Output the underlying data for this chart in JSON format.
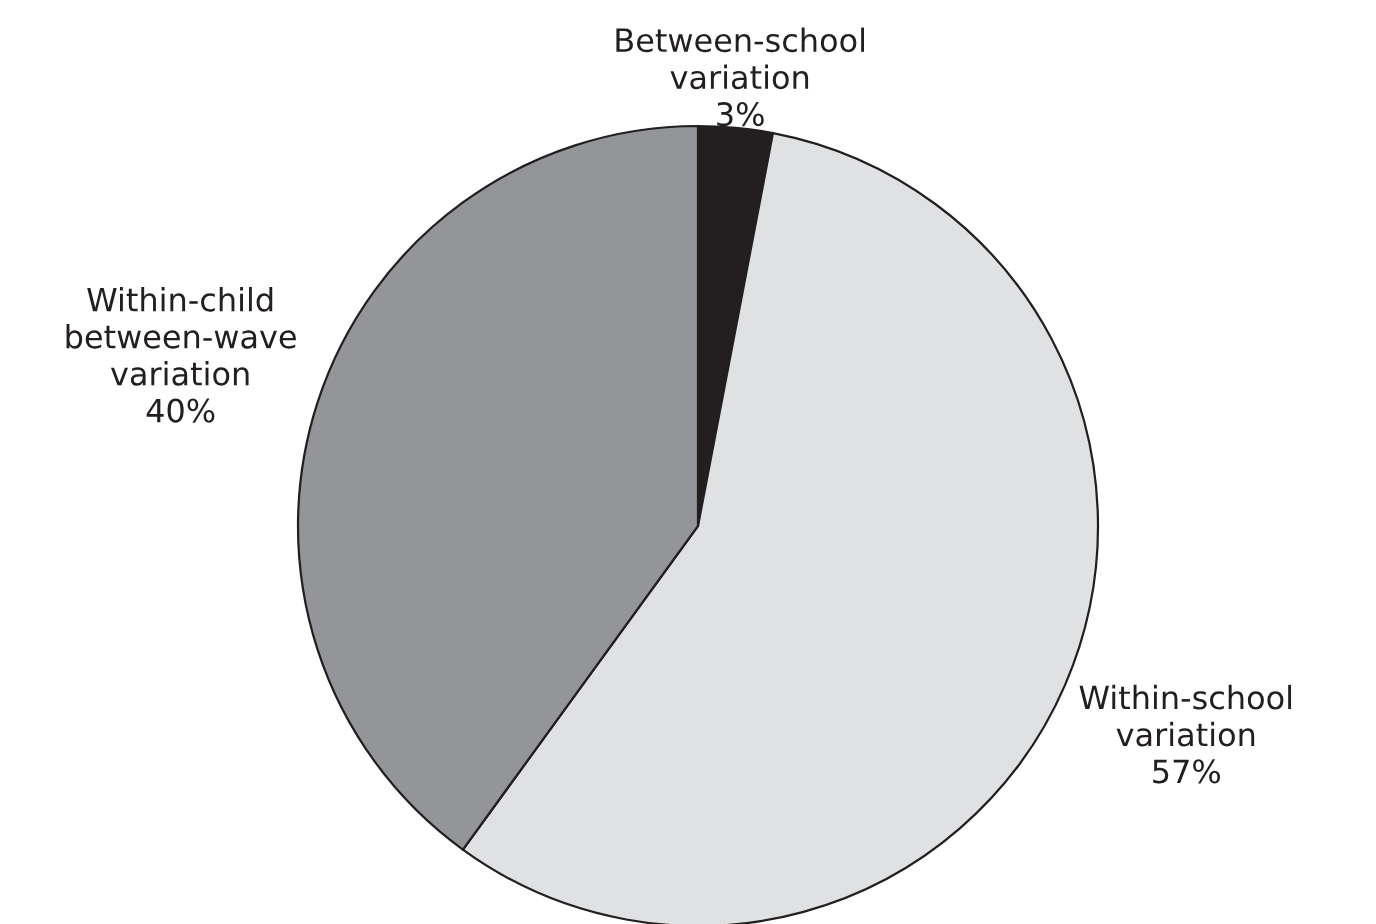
{
  "chart_data": {
    "type": "pie",
    "categories": [
      "Between-school\nvariation",
      "Within-school\nvariation",
      "Within-child\nbetween-wave\nvariation"
    ],
    "values": [
      3,
      57,
      40
    ],
    "value_labels": [
      "3%",
      "57%",
      "40%"
    ],
    "colors": [
      "#231f20",
      "#e0e1e3",
      "#939598"
    ]
  }
}
